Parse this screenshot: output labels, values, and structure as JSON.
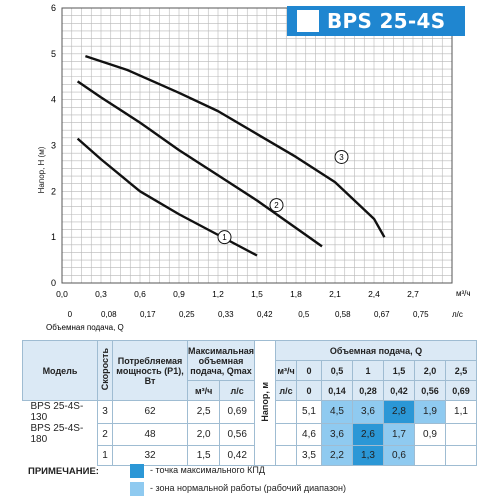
{
  "header": {
    "title": "BPS 25-4S"
  },
  "chart_data": {
    "type": "line",
    "xlabel": "Объемная подача, Q",
    "ylabel": "Напор, H (м)",
    "x_unit": "м³/ч",
    "x2_unit": "л/с",
    "xlim": [
      0,
      3.0
    ],
    "ylim": [
      0,
      6
    ],
    "x_ticks": [
      "0,0",
      "0,3",
      "0,6",
      "0,9",
      "1,2",
      "1,5",
      "1,8",
      "2,1",
      "2,4",
      "2,7"
    ],
    "x2_ticks": [
      "0",
      "0,08",
      "0,17",
      "0,25",
      "0,33",
      "0,42",
      "0,5",
      "0,58",
      "0,67",
      "0,75"
    ],
    "y_ticks": [
      "0",
      "1",
      "2",
      "3",
      "4",
      "5",
      "6"
    ],
    "series": [
      {
        "name": "1",
        "x": [
          0.12,
          0.3,
          0.6,
          0.9,
          1.2,
          1.5
        ],
        "y": [
          3.15,
          2.7,
          2.0,
          1.5,
          1.05,
          0.6
        ]
      },
      {
        "name": "2",
        "x": [
          0.12,
          0.3,
          0.6,
          0.9,
          1.2,
          1.5,
          1.8,
          2.0
        ],
        "y": [
          4.4,
          4.05,
          3.5,
          2.9,
          2.35,
          1.8,
          1.2,
          0.8
        ]
      },
      {
        "name": "3",
        "x": [
          0.18,
          0.5,
          0.9,
          1.2,
          1.5,
          1.8,
          2.1,
          2.4,
          2.48
        ],
        "y": [
          4.95,
          4.65,
          4.15,
          3.75,
          3.25,
          2.75,
          2.2,
          1.4,
          1.0
        ]
      }
    ],
    "series_labels": [
      {
        "text": "1",
        "x": 1.25,
        "y": 1.0
      },
      {
        "text": "2",
        "x": 1.65,
        "y": 1.7
      },
      {
        "text": "3",
        "x": 2.15,
        "y": 2.75
      }
    ]
  },
  "table": {
    "h_model": "Модель",
    "h_speed": "Скорость",
    "h_power": "Потребляемая мощность (P1), Вт",
    "h_qmax": "Максимальная объемная подача, Qmax",
    "h_qmax_m3": "м³/ч",
    "h_qmax_ls": "л/с",
    "h_head": "Напор, м",
    "h_flow": "Объемная подача, Q",
    "h_flow_m3": "м³/ч",
    "h_flow_ls": "л/с",
    "flow_m3": [
      "0",
      "0,5",
      "1",
      "1,5",
      "2,0",
      "2,5"
    ],
    "flow_ls": [
      "0",
      "0,14",
      "0,28",
      "0,42",
      "0,56",
      "0,69"
    ],
    "model_1": "BPS 25-4S-130",
    "model_2": "BPS 25-4S-180",
    "rows": [
      {
        "speed": "3",
        "power": "62",
        "qmax_m3": "2,5",
        "qmax_ls": "0,69",
        "h0": "5,1",
        "vals": [
          "4,5",
          "3,6",
          "2,8",
          "1,9",
          "1,1"
        ]
      },
      {
        "speed": "2",
        "power": "48",
        "qmax_m3": "2,0",
        "qmax_ls": "0,56",
        "h0": "4,6",
        "vals": [
          "3,6",
          "2,6",
          "1,7",
          "0,9",
          ""
        ]
      },
      {
        "speed": "1",
        "power": "32",
        "qmax_m3": "1,5",
        "qmax_ls": "0,42",
        "h0": "3,5",
        "vals": [
          "2,2",
          "1,3",
          "0,6",
          "",
          ""
        ]
      }
    ]
  },
  "notes": {
    "label": "ПРИМЕЧАНИЕ:",
    "max_eff": "- точка максимального КПД",
    "normal_zone": "- зона нормальной работы (рабочий диапазон)"
  },
  "colors": {
    "accent": "#1f86d0",
    "dark_cell": "#2b97d6",
    "light_cell": "#8fcaf0"
  }
}
